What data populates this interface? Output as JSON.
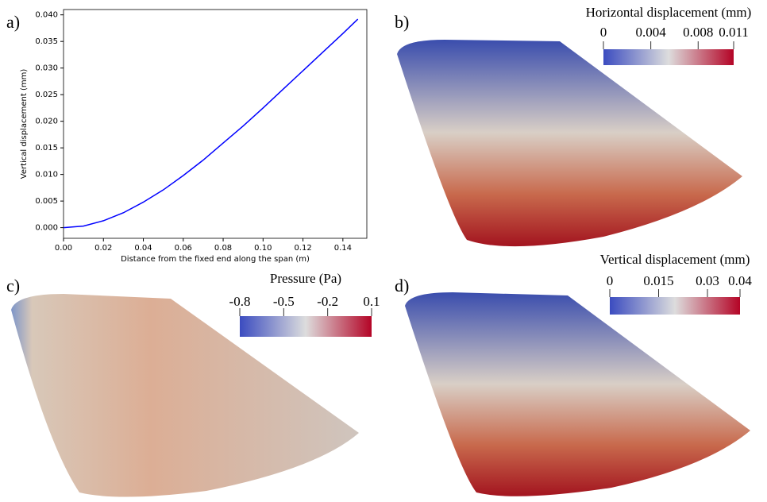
{
  "chart_data": [
    {
      "type": "line",
      "panel_label": "a)",
      "x_label": "Distance from the fixed end along the span (m)",
      "y_label": "Vertical displacement (mm)",
      "x": [
        0,
        0.01,
        0.02,
        0.03,
        0.04,
        0.05,
        0.06,
        0.07,
        0.08,
        0.09,
        0.1,
        0.11,
        0.12,
        0.13,
        0.14,
        0.1475
      ],
      "series": [
        {
          "color": "#0000ff",
          "values": [
            0,
            0.0003,
            0.0013,
            0.0028,
            0.0048,
            0.0071,
            0.0098,
            0.0127,
            0.0159,
            0.0191,
            0.0225,
            0.026,
            0.0295,
            0.033,
            0.0365,
            0.0392
          ]
        }
      ],
      "xlim": [
        0,
        0.152
      ],
      "ylim": [
        -0.002,
        0.041
      ],
      "xticks": [
        {
          "value": 0,
          "label": "0.00"
        },
        {
          "value": 0.02,
          "label": "0.02"
        },
        {
          "value": 0.04,
          "label": "0.04"
        },
        {
          "value": 0.06,
          "label": "0.06"
        },
        {
          "value": 0.08,
          "label": "0.08"
        },
        {
          "value": 0.1,
          "label": "0.10"
        },
        {
          "value": 0.12,
          "label": "0.12"
        },
        {
          "value": 0.14,
          "label": "0.14"
        }
      ],
      "yticks": [
        {
          "value": 0,
          "label": "0.000"
        },
        {
          "value": 0.005,
          "label": "0.005"
        },
        {
          "value": 0.01,
          "label": "0.010"
        },
        {
          "value": 0.015,
          "label": "0.015"
        },
        {
          "value": 0.02,
          "label": "0.020"
        },
        {
          "value": 0.025,
          "label": "0.025"
        },
        {
          "value": 0.03,
          "label": "0.030"
        },
        {
          "value": 0.035,
          "label": "0.035"
        },
        {
          "value": 0.04,
          "label": "0.040"
        }
      ]
    },
    {
      "type": "colorbar",
      "panel_label": "b)",
      "title": "Horizontal displacement (mm)",
      "xlim": [
        0,
        0.011
      ],
      "xticks": [
        0,
        0.004,
        0.008,
        0.011
      ],
      "colors": [
        "#3b4cc0",
        "#dddddd",
        "#b40426"
      ]
    },
    {
      "type": "colorbar",
      "panel_label": "c)",
      "title": "Pressure (Pa)",
      "xlim": [
        -0.8,
        0.1
      ],
      "xticks": [
        -0.8,
        -0.5,
        -0.2,
        0.1
      ],
      "colors": [
        "#3b4cc0",
        "#dddddd",
        "#b40426"
      ]
    },
    {
      "type": "colorbar",
      "panel_label": "d)",
      "title": "Vertical displacement (mm)",
      "xlim": [
        0,
        0.04
      ],
      "xticks": [
        0,
        0.015,
        0.03,
        0.04
      ],
      "colors": [
        "#3b4cc0",
        "#dddddd",
        "#b40426"
      ]
    }
  ]
}
